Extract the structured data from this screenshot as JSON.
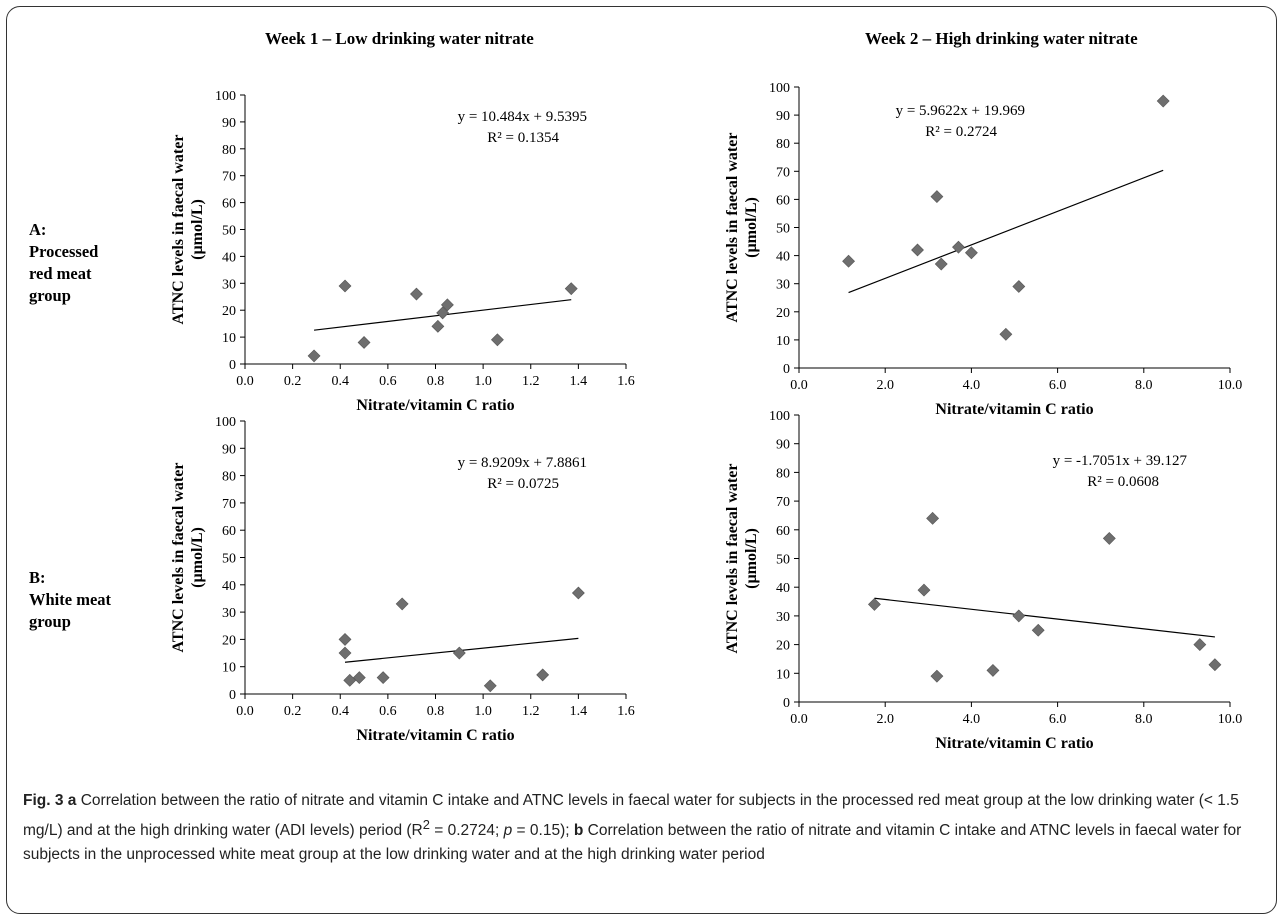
{
  "column_titles": [
    "Week 1 – Low drinking water nitrate",
    "Week 2  – High drinking water nitrate"
  ],
  "row_labels": [
    [
      "A:",
      "Processed",
      "red meat",
      "group"
    ],
    [
      "B:",
      "White meat",
      "group"
    ]
  ],
  "colors": {
    "marker": "#6e6e6e",
    "line": "#000000",
    "axis": "#000000",
    "border": "#333333"
  },
  "chart_data": [
    {
      "type": "scatter",
      "xlabel": "Nitrate/vitamin C ratio",
      "ylabel": [
        "ATNC levels in faecal water",
        "(µmol/L)"
      ],
      "xlim": [
        0,
        1.6
      ],
      "ylim": [
        0,
        100
      ],
      "xticks": [
        "0.0",
        "0.2",
        "0.4",
        "0.6",
        "0.8",
        "1.0",
        "1.2",
        "1.4",
        "1.6"
      ],
      "yticks": [
        "0",
        "10",
        "20",
        "30",
        "40",
        "50",
        "60",
        "70",
        "80",
        "90",
        "100"
      ],
      "points": [
        [
          0.29,
          3
        ],
        [
          0.42,
          29
        ],
        [
          0.5,
          8
        ],
        [
          0.72,
          26
        ],
        [
          0.81,
          14
        ],
        [
          0.83,
          19
        ],
        [
          0.85,
          22
        ],
        [
          1.06,
          9
        ],
        [
          1.37,
          28
        ]
      ],
      "trendline": {
        "slope": 10.484,
        "intercept": 9.5395,
        "x_range": [
          0.29,
          1.37
        ]
      },
      "equation": "y = 10.484x + 9.5395",
      "r2": "R² = 0.1354"
    },
    {
      "type": "scatter",
      "xlabel": "Nitrate/vitamin C ratio",
      "ylabel": [
        "ATNC levels in faecal water",
        "(µmol/L)"
      ],
      "xlim": [
        0,
        10
      ],
      "ylim": [
        0,
        100
      ],
      "xticks": [
        "0.0",
        "2.0",
        "4.0",
        "6.0",
        "8.0",
        "10.0"
      ],
      "yticks": [
        "0",
        "10",
        "20",
        "30",
        "40",
        "50",
        "60",
        "70",
        "80",
        "90",
        "100"
      ],
      "points": [
        [
          1.15,
          38
        ],
        [
          2.75,
          42
        ],
        [
          3.2,
          61
        ],
        [
          3.3,
          37
        ],
        [
          3.7,
          43
        ],
        [
          4.0,
          41
        ],
        [
          4.8,
          12
        ],
        [
          5.1,
          29
        ],
        [
          8.45,
          95
        ]
      ],
      "trendline": {
        "slope": 5.9622,
        "intercept": 19.969,
        "x_range": [
          1.15,
          8.45
        ]
      },
      "equation": "y = 5.9622x + 19.969",
      "r2": "R² = 0.2724"
    },
    {
      "type": "scatter",
      "xlabel": "Nitrate/vitamin C ratio",
      "ylabel": [
        "ATNC levels in faecal water",
        "(µmol/L)"
      ],
      "xlim": [
        0,
        1.6
      ],
      "ylim": [
        0,
        100
      ],
      "xticks": [
        "0.0",
        "0.2",
        "0.4",
        "0.6",
        "0.8",
        "1.0",
        "1.2",
        "1.4",
        "1.6"
      ],
      "yticks": [
        "0",
        "10",
        "20",
        "30",
        "40",
        "50",
        "60",
        "70",
        "80",
        "90",
        "100"
      ],
      "points": [
        [
          0.42,
          20
        ],
        [
          0.42,
          15
        ],
        [
          0.44,
          5
        ],
        [
          0.48,
          6
        ],
        [
          0.58,
          6
        ],
        [
          0.66,
          33
        ],
        [
          0.9,
          15
        ],
        [
          1.03,
          3
        ],
        [
          1.25,
          7
        ],
        [
          1.4,
          37
        ]
      ],
      "trendline": {
        "slope": 8.9209,
        "intercept": 7.8861,
        "x_range": [
          0.42,
          1.4
        ]
      },
      "equation": "y = 8.9209x + 7.8861",
      "r2": "R² = 0.0725"
    },
    {
      "type": "scatter",
      "xlabel": "Nitrate/vitamin C ratio",
      "ylabel": [
        "ATNC levels in faecal water",
        "(µmol/L)"
      ],
      "xlim": [
        0,
        10
      ],
      "ylim": [
        0,
        100
      ],
      "xticks": [
        "0.0",
        "2.0",
        "4.0",
        "6.0",
        "8.0",
        "10.0"
      ],
      "yticks": [
        "0",
        "10",
        "20",
        "30",
        "40",
        "50",
        "60",
        "70",
        "80",
        "90",
        "100"
      ],
      "points": [
        [
          1.75,
          34
        ],
        [
          2.9,
          39
        ],
        [
          3.1,
          64
        ],
        [
          3.2,
          9
        ],
        [
          4.5,
          11
        ],
        [
          5.1,
          30
        ],
        [
          5.55,
          25
        ],
        [
          7.2,
          57
        ],
        [
          9.3,
          20
        ],
        [
          9.65,
          13
        ]
      ],
      "trendline": {
        "slope": -1.7051,
        "intercept": 39.127,
        "x_range": [
          1.75,
          9.65
        ]
      },
      "equation": "y = -1.7051x + 39.127",
      "r2": "R² = 0.0608"
    }
  ],
  "caption": {
    "label": "Fig. 3",
    "a": "a",
    "text_a_1": " Correlation between the ratio of nitrate and vitamin C intake and ATNC levels in faecal water for subjects in the processed red meat group at the low drinking water (< 1.5 mg/L) and at the high drinking water (ADI levels) period (R",
    "sup": "2",
    "text_a_2": " = 0.2724; ",
    "p": "p",
    "text_a_3": " = 0.15); ",
    "b": "b",
    "text_b": " Correlation between the ratio of nitrate and vitamin C intake and ATNC levels in faecal water for subjects in the unprocessed white meat group at the low drinking water and at the high drinking water period"
  }
}
